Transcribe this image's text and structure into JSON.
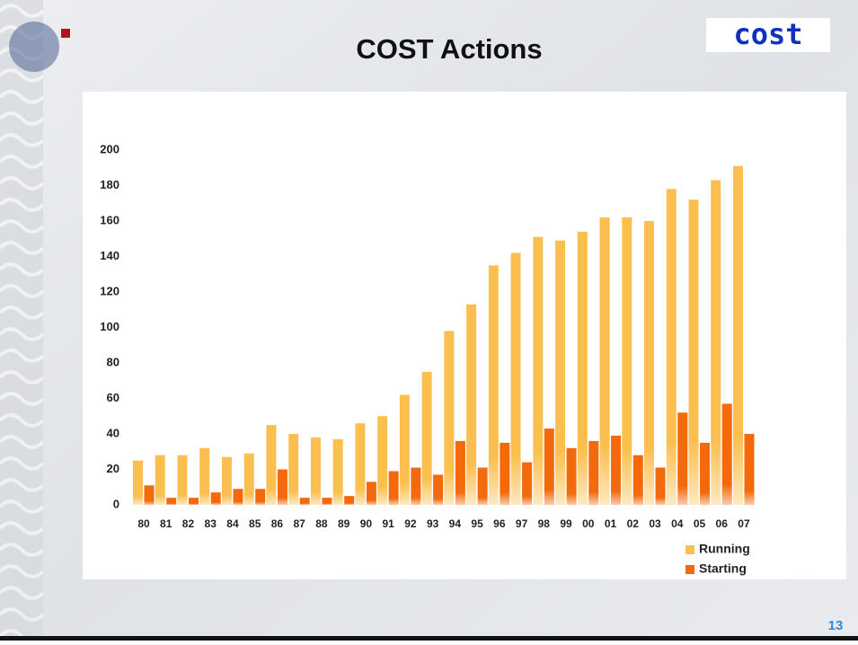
{
  "slide": {
    "title": "COST Actions",
    "logo": "cost",
    "page_number": "13"
  },
  "chart_data": {
    "type": "bar",
    "categories": [
      "80",
      "81",
      "82",
      "83",
      "84",
      "85",
      "86",
      "87",
      "88",
      "89",
      "90",
      "91",
      "92",
      "93",
      "94",
      "95",
      "96",
      "97",
      "98",
      "99",
      "00",
      "01",
      "02",
      "03",
      "04",
      "05",
      "06",
      "07"
    ],
    "series": [
      {
        "name": "Running",
        "color": "#fbbf4f",
        "values": [
          25,
          28,
          28,
          32,
          27,
          29,
          45,
          40,
          38,
          37,
          46,
          50,
          62,
          75,
          98,
          113,
          135,
          142,
          151,
          149,
          154,
          162,
          162,
          160,
          178,
          172,
          183,
          191
        ]
      },
      {
        "name": "Starting",
        "color": "#f26a0c",
        "values": [
          11,
          4,
          4,
          7,
          9,
          9,
          20,
          4,
          4,
          5,
          13,
          19,
          21,
          17,
          36,
          21,
          35,
          24,
          43,
          32,
          36,
          39,
          28,
          21,
          52,
          35,
          57,
          40
        ]
      }
    ],
    "ylim": [
      0,
      200
    ],
    "yticks": [
      0,
      20,
      40,
      60,
      80,
      100,
      120,
      140,
      160,
      180,
      200
    ],
    "legend": "bottom-right"
  }
}
